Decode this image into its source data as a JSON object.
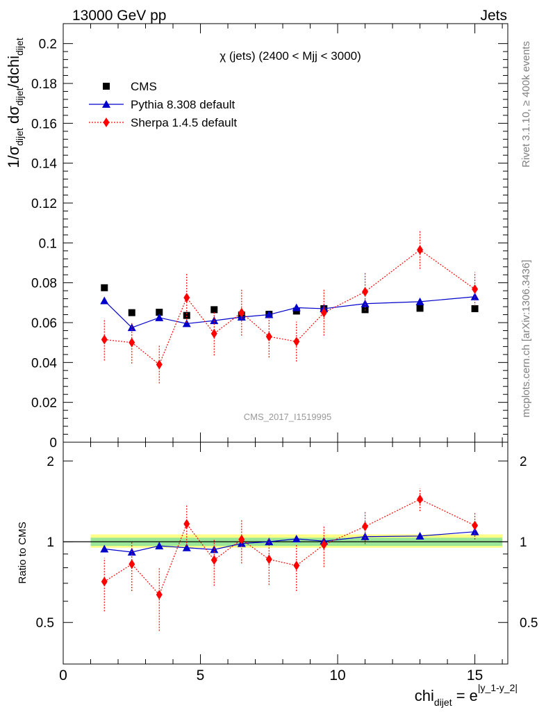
{
  "header": {
    "left": "13000 GeV pp",
    "right": "Jets"
  },
  "side_text": {
    "rivet": "Rivet 3.1.10, ≥ 400k events",
    "mcplots": "mcplots.cern.ch [arXiv:1306.3436]"
  },
  "chart_data": [
    {
      "type": "scatter",
      "title": "χ (jets) (2400 < Mjj < 3000)",
      "watermark": "CMS_2017_I1519995",
      "ylabel": "1/σdijet dσdijet/dchidijet",
      "ylim": [
        0,
        0.21
      ],
      "yticks": [
        "0",
        "0.02",
        "0.04",
        "0.06",
        "0.08",
        "0.1",
        "0.12",
        "0.14",
        "0.16",
        "0.18",
        "0.2"
      ],
      "xlim": [
        0,
        16.2
      ],
      "x": [
        1.5,
        2.5,
        3.5,
        4.5,
        5.5,
        6.5,
        7.5,
        8.5,
        9.5,
        11,
        13,
        15
      ],
      "legend": [
        "CMS",
        "Pythia 8.308 default",
        "Sherpa 1.4.5 default"
      ],
      "series": [
        {
          "name": "CMS",
          "color": "#000000",
          "marker": "square",
          "values": [
            0.0775,
            0.065,
            0.0652,
            0.0636,
            0.0665,
            0.0638,
            0.0642,
            0.0658,
            0.067,
            0.0665,
            0.0672,
            0.067
          ]
        },
        {
          "name": "Pythia 8.308 default",
          "color": "#0000cc",
          "marker": "triangle",
          "values": [
            0.071,
            0.0575,
            0.0625,
            0.0595,
            0.061,
            0.0628,
            0.064,
            0.0675,
            0.067,
            0.0695,
            0.0705,
            0.073
          ],
          "errors": [
            0.0015,
            0.001,
            0.001,
            0.001,
            0.001,
            0.001,
            0.001,
            0.0015,
            0.001,
            0.001,
            0.001,
            0.001
          ]
        },
        {
          "name": "Sherpa 1.4.5 default",
          "color": "#ff0000",
          "marker": "diamond",
          "values": [
            0.0515,
            0.05,
            0.039,
            0.0725,
            0.0545,
            0.065,
            0.053,
            0.0505,
            0.065,
            0.0755,
            0.0965,
            0.0768
          ],
          "errors": [
            0.0105,
            0.0105,
            0.0095,
            0.0125,
            0.011,
            0.0115,
            0.0105,
            0.01,
            0.0115,
            0.0095,
            0.0095,
            0.0085
          ]
        }
      ]
    },
    {
      "type": "scatter",
      "ylabel": "Ratio to CMS",
      "xlabel": "chidijet = e|y_1-y_2|",
      "ylim": [
        0.35,
        2.35
      ],
      "yticks": [
        "0.5",
        "1",
        "2"
      ],
      "xlim": [
        0,
        16.2
      ],
      "xticks": [
        "0",
        "5",
        "10",
        "15"
      ],
      "x": [
        1.5,
        2.5,
        3.5,
        4.5,
        5.5,
        6.5,
        7.5,
        8.5,
        9.5,
        11,
        13,
        15
      ],
      "band": {
        "x_from": 1,
        "x_to": 16,
        "inner": [
          0.965,
          1.035
        ],
        "outer": [
          0.95,
          1.065
        ]
      },
      "series": [
        {
          "name": "Pythia 8.308 default",
          "color": "#0000cc",
          "marker": "triangle",
          "values": [
            0.94,
            0.915,
            0.965,
            0.95,
            0.935,
            0.985,
            1.0,
            1.025,
            1.005,
            1.045,
            1.05,
            1.09
          ]
        },
        {
          "name": "Sherpa 1.4.5 default",
          "color": "#ff0000",
          "marker": "diamond",
          "values": [
            0.71,
            0.825,
            0.635,
            1.165,
            0.855,
            1.02,
            0.86,
            0.815,
            0.975,
            1.14,
            1.44,
            1.15
          ],
          "errors": [
            0.16,
            0.17,
            0.17,
            0.2,
            0.17,
            0.19,
            0.17,
            0.16,
            0.17,
            0.16,
            0.14,
            0.13
          ]
        }
      ]
    }
  ]
}
